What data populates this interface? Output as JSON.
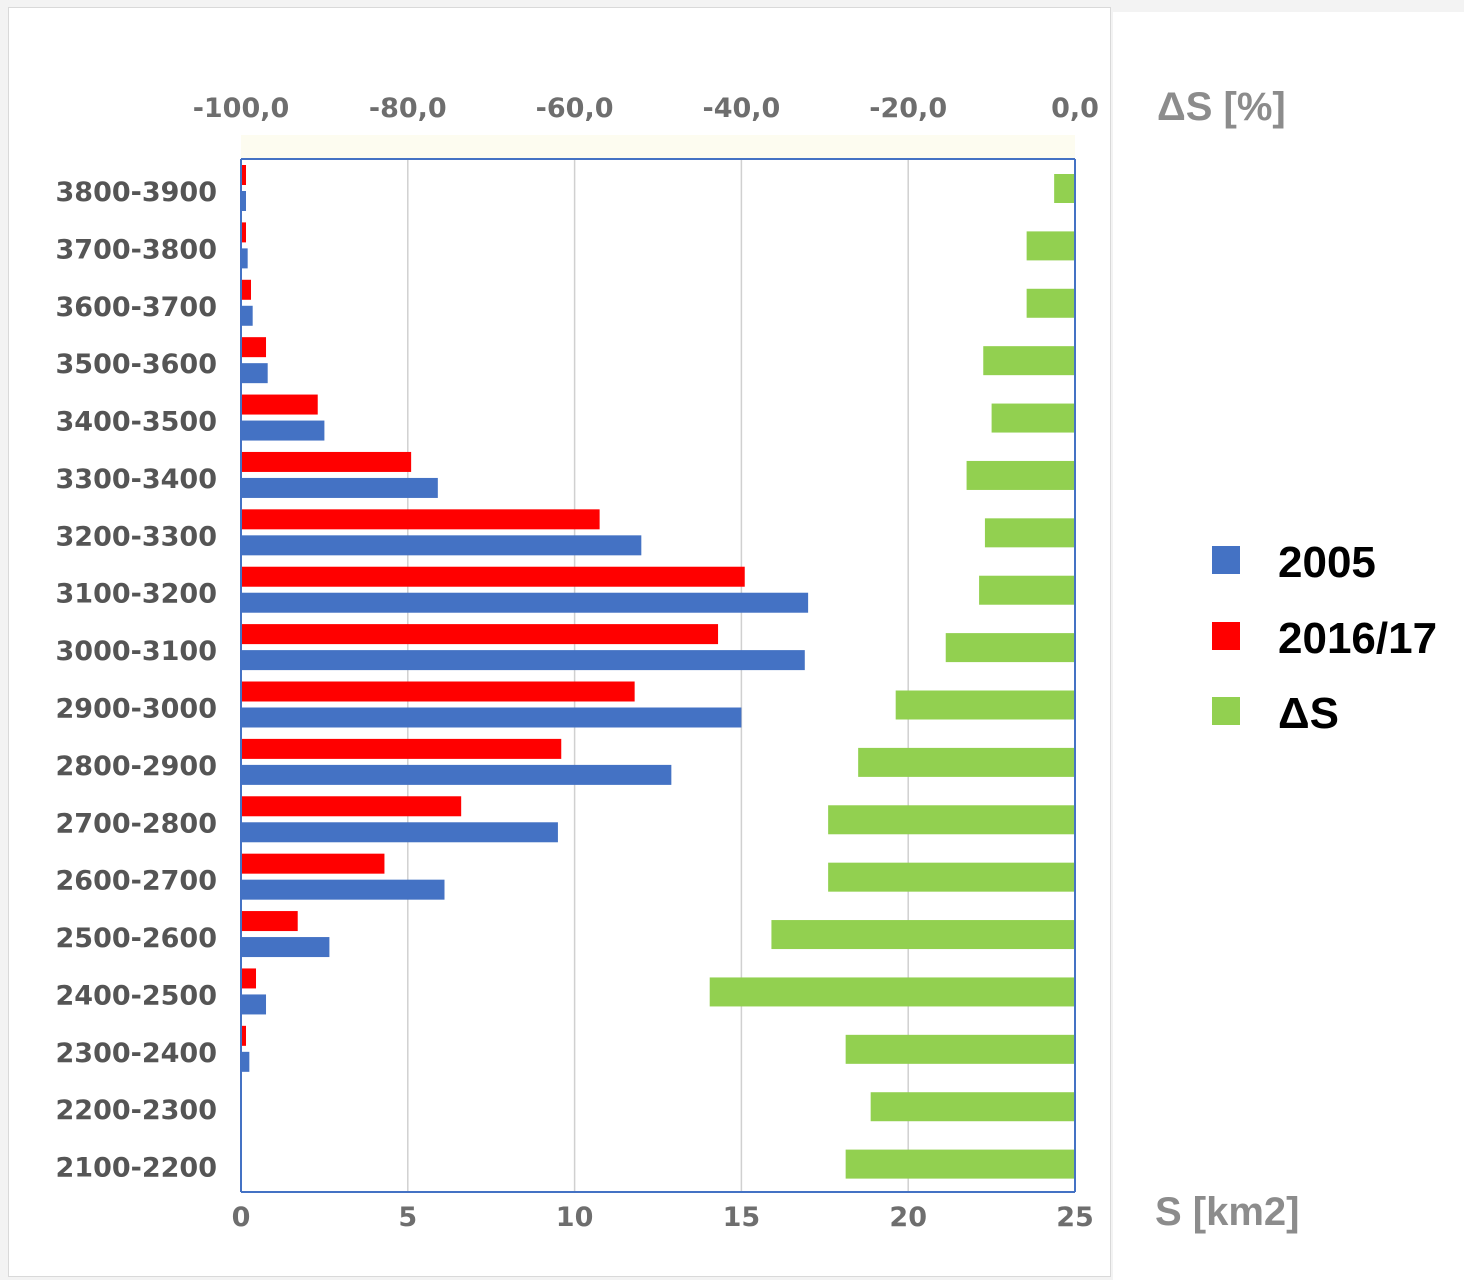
{
  "chart_data": {
    "type": "bar",
    "orientation": "horizontal",
    "categories": [
      "3800-3900",
      "3700-3800",
      "3600-3700",
      "3500-3600",
      "3400-3500",
      "3300-3400",
      "3200-3300",
      "3100-3200",
      "3000-3100",
      "2900-3000",
      "2800-2900",
      "2700-2800",
      "2600-2700",
      "2500-2600",
      "2400-2500",
      "2300-2400",
      "2200-2300",
      "2100-2200"
    ],
    "series": [
      {
        "name": "2005",
        "color": "#4472c4",
        "axis": "bottom",
        "values": [
          0.15,
          0.2,
          0.35,
          0.8,
          2.5,
          5.9,
          12.0,
          17.0,
          16.9,
          15.0,
          12.9,
          9.5,
          6.1,
          2.65,
          0.75,
          0.25,
          0,
          0
        ]
      },
      {
        "name": "2016/17",
        "color": "#ff0000",
        "axis": "bottom",
        "values": [
          0.15,
          0.15,
          0.3,
          0.75,
          2.3,
          5.1,
          10.75,
          15.1,
          14.3,
          11.8,
          9.6,
          6.6,
          4.3,
          1.7,
          0.45,
          0.15,
          0,
          0
        ]
      },
      {
        "name": "ΔS",
        "color": "#92d050",
        "axis": "top",
        "values": [
          -2.5,
          -5.8,
          -5.8,
          -11.0,
          -10.0,
          -13.0,
          -10.8,
          -11.5,
          -15.5,
          -21.5,
          -26.0,
          -29.6,
          -29.6,
          -36.4,
          -43.8,
          -27.5,
          -24.5,
          -27.5
        ]
      }
    ],
    "x_bottom": {
      "label": "S [km2]",
      "range": [
        0,
        25
      ],
      "ticks": [
        "0",
        "5",
        "10",
        "15",
        "20",
        "25"
      ]
    },
    "x_top": {
      "label": "ΔS [%]",
      "range": [
        -100,
        0
      ],
      "ticks": [
        "-100,0",
        "-80,0",
        "-60,0",
        "-40,0",
        "-20,0",
        "0,0"
      ]
    },
    "grid": "vertical",
    "legend_position": "right"
  }
}
